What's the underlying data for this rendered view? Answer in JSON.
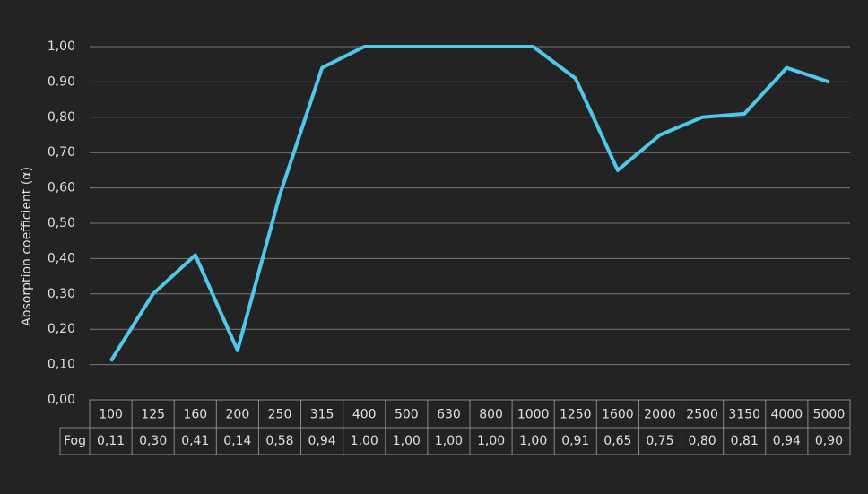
{
  "chart_data": {
    "type": "line",
    "y_axis_label": "Absorption coefficient (α)",
    "categories": [
      "100",
      "125",
      "160",
      "200",
      "250",
      "315",
      "400",
      "500",
      "630",
      "800",
      "1000",
      "1250",
      "1600",
      "2000",
      "2500",
      "3150",
      "4000",
      "5000"
    ],
    "series": [
      {
        "name": "Fog",
        "color": "#4fc8ec",
        "values": [
          0.11,
          0.3,
          0.41,
          0.14,
          0.58,
          0.94,
          1.0,
          1.0,
          1.0,
          1.0,
          1.0,
          0.91,
          0.65,
          0.75,
          0.8,
          0.81,
          0.94,
          0.9
        ],
        "value_labels": [
          "0,11",
          "0,30",
          "0,41",
          "0,14",
          "0,58",
          "0,94",
          "1,00",
          "1,00",
          "1,00",
          "1,00",
          "1,00",
          "0,91",
          "0,65",
          "0,75",
          "0,80",
          "0,81",
          "0,94",
          "0,90"
        ]
      }
    ],
    "ylim": [
      0,
      1
    ],
    "yticks": [
      {
        "value": 0,
        "label": "0,00"
      },
      {
        "value": 0.1,
        "label": "0,10"
      },
      {
        "value": 0.2,
        "label": "0,20"
      },
      {
        "value": 0.3,
        "label": "0,30"
      },
      {
        "value": 0.4,
        "label": "0,40"
      },
      {
        "value": 0.5,
        "label": "0,50"
      },
      {
        "value": 0.6,
        "label": "0,60"
      },
      {
        "value": 0.7,
        "label": "0,70"
      },
      {
        "value": 0.8,
        "label": "0,80"
      },
      {
        "value": 0.9,
        "label": "0.90"
      },
      {
        "value": 1,
        "label": "1,00"
      }
    ],
    "grid": true
  }
}
